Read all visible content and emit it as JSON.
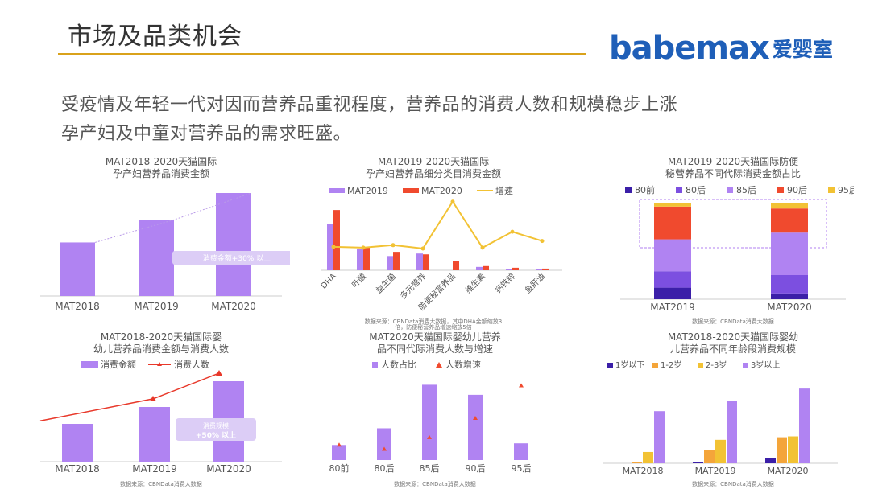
{
  "header": {
    "title": "市场及品类机会",
    "logo_text": "babemax",
    "logo_cn": "爱婴室"
  },
  "subtitle": {
    "line1": "受疫情及年轻一代对因而营养品重视程度，营养品的消费人数和规模稳步上涨",
    "line2": "孕产妇及中童对营养品的需求旺盛。"
  },
  "colors": {
    "purple": "#b083f2",
    "red": "#f04a2e",
    "yellow": "#f2c234",
    "dark_blue": "#3b1fa8",
    "violet": "#7c4fe0",
    "orange": "#f4a53a",
    "accent_line": "#d9a21b",
    "brand_blue": "#1f5fb8"
  },
  "charts": {
    "c1": {
      "title_l1": "MAT2018-2020天猫国际",
      "title_l2": "孕产妇营养品消费金额",
      "annotation": "消费金额+30% 以上"
    },
    "c2": {
      "title_l1": "MAT2019-2020天猫国际",
      "title_l2": "孕产妇营养品细分类目消费金额",
      "source_l1": "数据来源：CBNData消费大数据，其中DHA金额缩放3",
      "source_l2": "倍，防便秘营养品增速缩放5倍"
    },
    "c3": {
      "title_l1": "MAT2019-2020天猫国际防便",
      "title_l2": "秘营养品不同代际消费金额占比",
      "source": "数据来源：CBNData消费大数据"
    },
    "c4": {
      "title_l1": "MAT2018-2020天猫国际婴",
      "title_l2": "幼儿营养品消费金额与消费人数",
      "annotation_l1": "消费规模",
      "annotation_l2": "+50% 以上",
      "source": "数据来源：CBNData消费大数据"
    },
    "c5": {
      "title_l1": "MAT2020天猫国际婴幼儿营养",
      "title_l2": "品不同代际消费人数与增速",
      "source": "数据来源：CBNData消费大数据"
    },
    "c6": {
      "title_l1": "MAT2018-2020天猫国际婴幼",
      "title_l2": "儿营养品不同年龄段消费规模",
      "source": "数据来源：CBNData消费大数据"
    }
  },
  "chart_data": [
    {
      "type": "bar",
      "categories": [
        "MAT2018",
        "MAT2019",
        "MAT2020"
      ],
      "values": [
        52,
        74,
        100
      ]
    },
    {
      "type": "bar",
      "categories": [
        "DHA",
        "叶酸",
        "益生菌",
        "多元营养",
        "防便秘营养品",
        "维生素",
        "钙铁锌",
        "鱼肝油"
      ],
      "series": [
        {
          "name": "MAT2019",
          "values": [
            55,
            26,
            17,
            20,
            0,
            4,
            1,
            1
          ],
          "color": "#b083f2"
        },
        {
          "name": "MAT2020",
          "values": [
            72,
            27,
            22,
            19,
            11,
            5,
            3,
            2
          ],
          "color": "#f04a2e"
        },
        {
          "name": "增速",
          "values": [
            28,
            27,
            30,
            26,
            82,
            27,
            46,
            35
          ],
          "color": "#f2c234",
          "kind": "line"
        }
      ]
    },
    {
      "type": "bar",
      "categories": [
        "MAT2019",
        "MAT2020"
      ],
      "series": [
        {
          "name": "80前",
          "values": [
            12,
            6
          ],
          "color": "#3b1fa8"
        },
        {
          "name": "80后",
          "values": [
            17,
            19
          ],
          "color": "#7c4fe0"
        },
        {
          "name": "85后",
          "values": [
            33,
            44
          ],
          "color": "#b083f2"
        },
        {
          "name": "90后",
          "values": [
            34,
            25
          ],
          "color": "#f04a2e"
        },
        {
          "name": "95后",
          "values": [
            4,
            6
          ],
          "color": "#f2c234"
        }
      ]
    },
    {
      "type": "bar",
      "categories": [
        "MAT2018",
        "MAT2019",
        "MAT2020"
      ],
      "series": [
        {
          "name": "消费金额",
          "values": [
            47,
            68,
            100
          ],
          "color": "#b083f2"
        },
        {
          "name": "消费人数",
          "values": [
            48,
            72,
            100
          ],
          "color": "#e8382a",
          "kind": "line"
        }
      ]
    },
    {
      "type": "bar",
      "categories": [
        "80前",
        "80后",
        "85后",
        "90后",
        "95后"
      ],
      "series": [
        {
          "name": "人数占比",
          "values": [
            18,
            38,
            90,
            78,
            20
          ],
          "color": "#b083f2"
        },
        {
          "name": "人数增速",
          "values": [
            18,
            13,
            27,
            50,
            89
          ],
          "color": "#f04a2e",
          "kind": "marker"
        }
      ]
    },
    {
      "type": "bar",
      "categories": [
        "MAT2018",
        "MAT2019",
        "MAT2020"
      ],
      "series": [
        {
          "name": "1岁以下",
          "values": [
            0,
            1,
            6
          ],
          "color": "#3b1fa8"
        },
        {
          "name": "1-2岁",
          "values": [
            1,
            15,
            30
          ],
          "color": "#f4a53a"
        },
        {
          "name": "2-3岁",
          "values": [
            13,
            27,
            31
          ],
          "color": "#f2c234"
        },
        {
          "name": "3岁以上",
          "values": [
            60,
            72,
            86
          ],
          "color": "#b083f2"
        }
      ]
    }
  ]
}
